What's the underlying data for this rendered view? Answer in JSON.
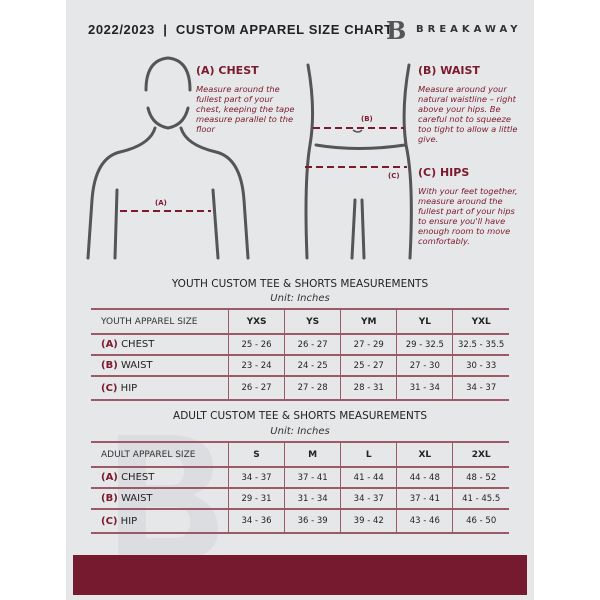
{
  "header": {
    "title": "2022/2023  |  CUSTOM APPAREL SIZE CHART",
    "brand": "BREAKAWAY",
    "logo_letter": "B"
  },
  "measures": {
    "chest": {
      "title": "(A) CHEST",
      "desc": "Measure around the fullest part of your chest, keeping the tape measure parallel to the floor",
      "marker": "(A)"
    },
    "waist": {
      "title": "(B) WAIST",
      "desc": "Measure around your natural waistline – right above your hips. Be careful not to squeeze too tight to allow a little give.",
      "marker": "(B)"
    },
    "hips": {
      "title": "(C) HIPS",
      "desc": "With your feet together, measure around the fullest part of your hips to ensure you'll have enough room to move comfortably.",
      "marker": "(C)"
    }
  },
  "youth": {
    "title": "YOUTH CUSTOM TEE & SHORTS MEASUREMENTS",
    "unit": "Unit: Inches",
    "header": "YOUTH APPAREL SIZE",
    "sizes": [
      "YXS",
      "YS",
      "YM",
      "YL",
      "YXL"
    ],
    "rows": [
      {
        "letter": "(A)",
        "label": "CHEST",
        "values": [
          "25 - 26",
          "26 - 27",
          "27 - 29",
          "29 - 32.5",
          "32.5 - 35.5"
        ]
      },
      {
        "letter": "(B)",
        "label": "WAIST",
        "values": [
          "23 - 24",
          "24 - 25",
          "25 - 27",
          "27 - 30",
          "30 - 33"
        ]
      },
      {
        "letter": "(C)",
        "label": "HIP",
        "values": [
          "26 - 27",
          "27 - 28",
          "28 - 31",
          "31 - 34",
          "34 - 37"
        ]
      }
    ]
  },
  "adult": {
    "title": "ADULT CUSTOM TEE & SHORTS MEASUREMENTS",
    "unit": "Unit: Inches",
    "header": "ADULT APPAREL SIZE",
    "sizes": [
      "S",
      "M",
      "L",
      "XL",
      "2XL"
    ],
    "rows": [
      {
        "letter": "(A)",
        "label": "CHEST",
        "values": [
          "34 - 37",
          "37 - 41",
          "41 - 44",
          "44 - 48",
          "48 - 52"
        ]
      },
      {
        "letter": "(B)",
        "label": "WAIST",
        "values": [
          "29 - 31",
          "31 - 34",
          "34 - 37",
          "37 - 41",
          "41 - 45.5"
        ]
      },
      {
        "letter": "(C)",
        "label": "HIP",
        "values": [
          "34 - 36",
          "36 - 39",
          "39 - 42",
          "43 - 46",
          "46 - 50"
        ]
      }
    ]
  },
  "colors": {
    "accent": "#761a30",
    "background": "#e6e7e9"
  }
}
